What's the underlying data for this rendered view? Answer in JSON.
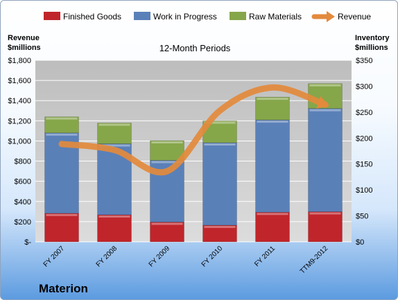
{
  "chart_data": {
    "type": "bar",
    "subtitle": "12-Month Periods",
    "company": "Materion",
    "y_left_title": [
      "Revenue",
      "$millions"
    ],
    "y_right_title": [
      "Inventory",
      "$millions"
    ],
    "y_left_ticks": [
      "$-",
      "$200",
      "$400",
      "$600",
      "$800",
      "$1,000",
      "$1,200",
      "$1,400",
      "$1,600",
      "$1,800"
    ],
    "y_right_ticks": [
      "$0",
      "$50",
      "$100",
      "$150",
      "$200",
      "$250",
      "$300",
      "$350"
    ],
    "y_left_lim": [
      0,
      1800
    ],
    "y_right_lim": [
      0,
      350
    ],
    "categories": [
      "FY 2007",
      "FY 2008",
      "FY 2009",
      "FY 2010",
      "FY 2011",
      "TTM9-2012"
    ],
    "legend": [
      "Finished Goods",
      "Work in Progress",
      "Raw Materials",
      "Revenue"
    ],
    "series": [
      {
        "name": "Finished Goods",
        "type": "stacked-bar",
        "axis": "right",
        "color": "#c0252b",
        "values": [
          55,
          52,
          38,
          32,
          57,
          58
        ]
      },
      {
        "name": "Work in Progress",
        "type": "stacked-bar",
        "axis": "right",
        "color": "#5a80b8",
        "values": [
          155,
          137,
          119,
          159,
          178,
          199
        ]
      },
      {
        "name": "Raw Materials",
        "type": "stacked-bar",
        "axis": "right",
        "color": "#86a64a",
        "values": [
          31,
          40,
          38,
          42,
          44,
          48
        ]
      },
      {
        "name": "Revenue",
        "type": "line",
        "axis": "left",
        "color": "#e38a3c",
        "values": [
          970,
          910,
          700,
          1300,
          1530,
          1360
        ]
      }
    ],
    "grid": true,
    "legend_position": "top"
  }
}
